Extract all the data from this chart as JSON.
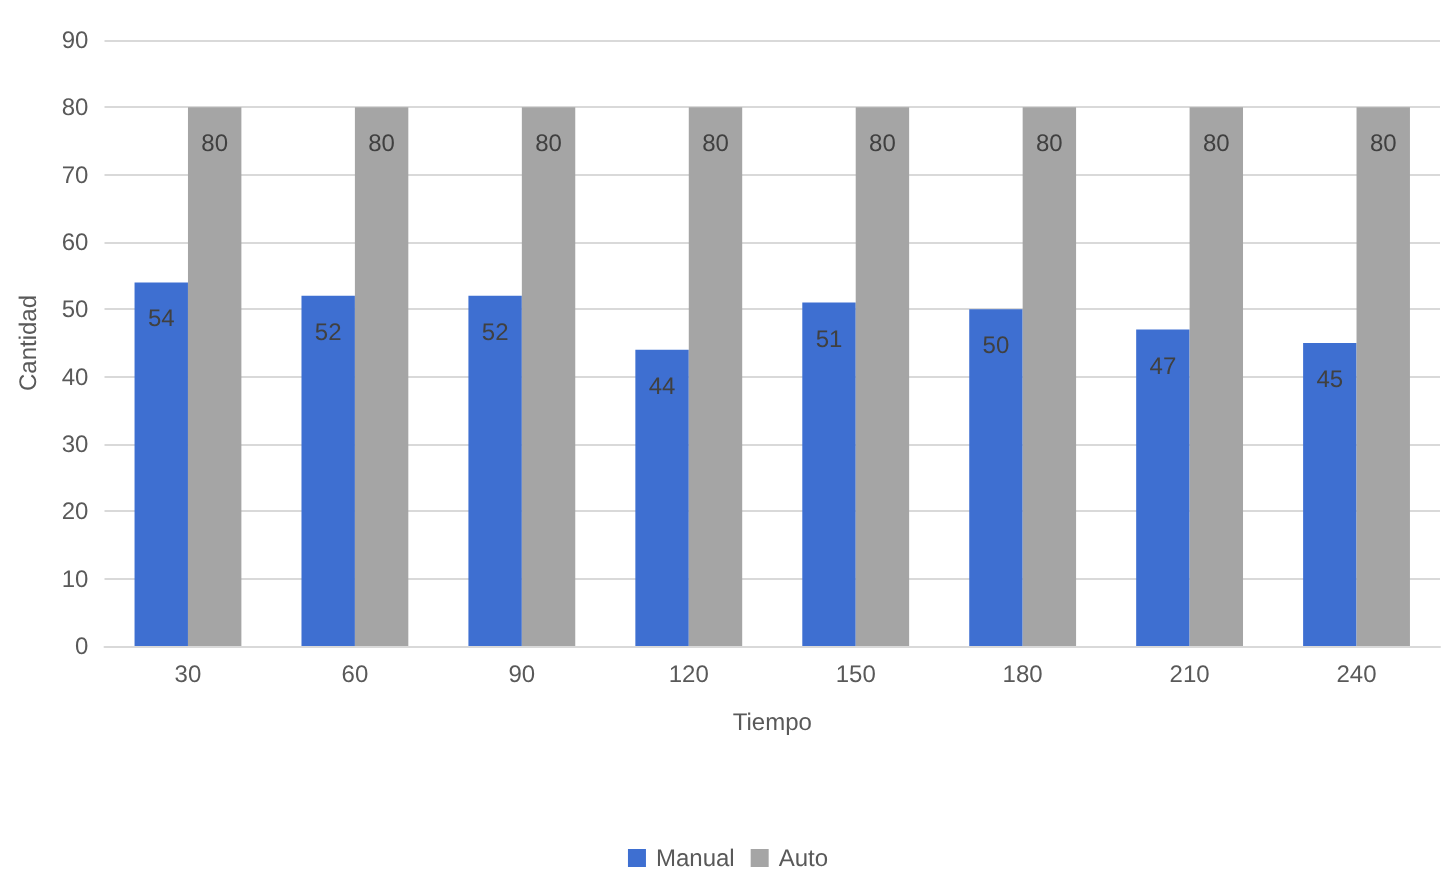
{
  "chart_data": {
    "type": "bar",
    "xlabel": "Tiempo",
    "ylabel": "Cantidad",
    "categories": [
      "30",
      "60",
      "90",
      "120",
      "150",
      "180",
      "210",
      "240"
    ],
    "series": [
      {
        "name": "Manual",
        "color": "#3e6fd1",
        "values": [
          54,
          52,
          52,
          44,
          51,
          50,
          47,
          45
        ]
      },
      {
        "name": "Auto",
        "color": "#a5a5a5",
        "values": [
          80,
          80,
          80,
          80,
          80,
          80,
          80,
          80
        ]
      }
    ],
    "ylim": [
      0,
      90
    ],
    "yticks": [
      0,
      10,
      20,
      30,
      40,
      50,
      60,
      70,
      80,
      90
    ],
    "grid": "y",
    "legend": "bottom",
    "data_labels": true
  }
}
